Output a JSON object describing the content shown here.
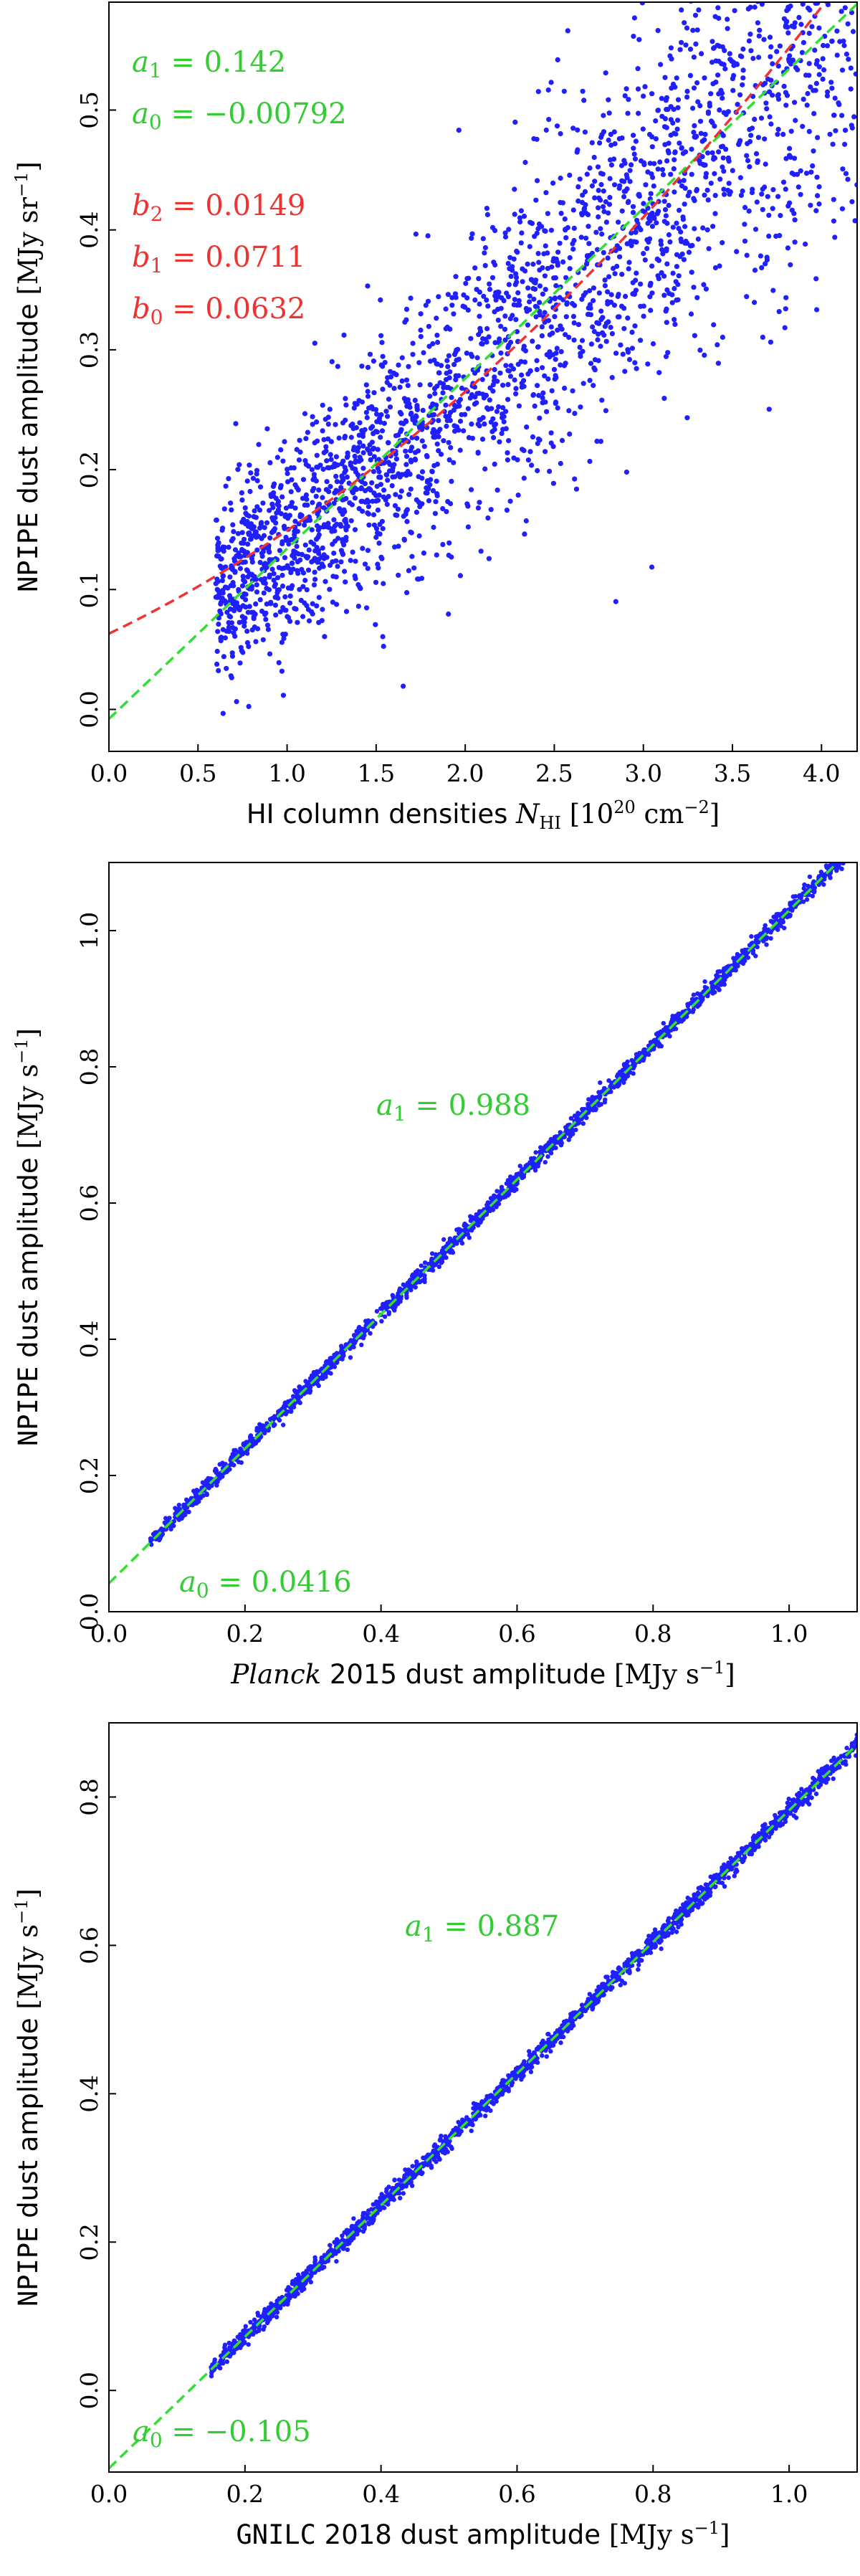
{
  "chart_data": [
    {
      "type": "scatter",
      "title": "",
      "xlabel": {
        "prefix": "HI column densities ",
        "sym": "N",
        "sub": "HI",
        "unit_open": " [10",
        "sup": "20",
        "unit_close": " cm",
        "sup2": "−2",
        "end": "]"
      },
      "ylabel": {
        "mono": "NPIPE",
        "text": " dust amplitude ",
        "unit": "[MJy sr",
        "sup": "−1",
        "end": "]"
      },
      "xlim": [
        0.0,
        4.2
      ],
      "ylim": [
        -0.035,
        0.59
      ],
      "xticks": [
        0.0,
        0.5,
        1.0,
        1.5,
        2.0,
        2.5,
        3.0,
        3.5,
        4.0
      ],
      "yticks": [
        0.0,
        0.1,
        0.2,
        0.3,
        0.4,
        0.5
      ],
      "xtick_labels": [
        "0.0",
        "0.5",
        "1.0",
        "1.5",
        "2.0",
        "2.5",
        "3.0",
        "3.5",
        "4.0"
      ],
      "ytick_labels": [
        "0.0",
        "0.1",
        "0.2",
        "0.3",
        "0.4",
        "0.5"
      ],
      "points_color": "#1f1fff",
      "cloud": {
        "x_min": 0.6,
        "x_max": 4.2,
        "slope": 0.142,
        "intercept": -0.00792,
        "spread": 0.045
      },
      "fits": [
        {
          "kind": "linear",
          "color": "#33dd33",
          "coeffs": [
            -0.00792,
            0.142
          ]
        },
        {
          "kind": "quadratic",
          "color": "#ee3333",
          "coeffs": [
            0.0632,
            0.0711,
            0.0149
          ]
        }
      ],
      "annotations": [
        {
          "sym": "a",
          "sub": "1",
          "value": " = 0.142",
          "color": "#33cc33"
        },
        {
          "sym": "a",
          "sub": "0",
          "value": " = −0.00792",
          "color": "#33cc33"
        },
        {
          "sym": "b",
          "sub": "2",
          "value": " = 0.0149",
          "color": "#ee3333"
        },
        {
          "sym": "b",
          "sub": "1",
          "value": " = 0.0711",
          "color": "#ee3333"
        },
        {
          "sym": "b",
          "sub": "0",
          "value": " = 0.0632",
          "color": "#ee3333"
        }
      ]
    },
    {
      "type": "scatter",
      "title": "",
      "xlabel": {
        "it": "Planck",
        "text": " 2015 dust amplitude ",
        "unit": "[MJy s",
        "sup": "−1",
        "end": "]"
      },
      "ylabel": {
        "mono": "NPIPE",
        "text": " dust amplitude ",
        "unit": "[MJy s",
        "sup": "−1",
        "end": "]"
      },
      "xlim": [
        0.0,
        1.1
      ],
      "ylim": [
        0.0,
        1.1
      ],
      "xticks": [
        0.0,
        0.2,
        0.4,
        0.6,
        0.8,
        1.0
      ],
      "yticks": [
        0.0,
        0.2,
        0.4,
        0.6,
        0.8,
        1.0
      ],
      "xtick_labels": [
        "0.0",
        "0.2",
        "0.4",
        "0.6",
        "0.8",
        "1.0"
      ],
      "ytick_labels": [
        "0.0",
        "0.2",
        "0.4",
        "0.6",
        "0.8",
        "1.0"
      ],
      "points_color": "#1f1fff",
      "cloud": {
        "x_min": 0.06,
        "x_max": 1.1,
        "slope": 0.988,
        "intercept": 0.0416,
        "spread": 0.006
      },
      "fits": [
        {
          "kind": "linear",
          "color": "#33dd33",
          "coeffs": [
            0.0416,
            0.988
          ]
        }
      ],
      "annotations": [
        {
          "sym": "a",
          "sub": "1",
          "value": " = 0.988",
          "color": "#33cc33"
        },
        {
          "sym": "a",
          "sub": "0",
          "value": " = 0.0416",
          "color": "#33cc33"
        }
      ]
    },
    {
      "type": "scatter",
      "title": "",
      "xlabel": {
        "mono": "GNILC",
        "text": " 2018 dust amplitude ",
        "unit": "[MJy s",
        "sup": "−1",
        "end": "]"
      },
      "ylabel": {
        "mono": "NPIPE",
        "text": " dust amplitude ",
        "unit": "[MJy s",
        "sup": "−1",
        "end": "]"
      },
      "xlim": [
        0.0,
        1.1
      ],
      "ylim": [
        -0.11,
        0.9
      ],
      "xticks": [
        0.0,
        0.2,
        0.4,
        0.6,
        0.8,
        1.0
      ],
      "yticks": [
        0.0,
        0.2,
        0.4,
        0.6,
        0.8
      ],
      "xtick_labels": [
        "0.0",
        "0.2",
        "0.4",
        "0.6",
        "0.8",
        "1.0"
      ],
      "ytick_labels": [
        "0.0",
        "0.2",
        "0.4",
        "0.6",
        "0.8"
      ],
      "points_color": "#1f1fff",
      "cloud": {
        "x_min": 0.15,
        "x_max": 1.1,
        "slope": 0.887,
        "intercept": -0.105,
        "spread": 0.006
      },
      "fits": [
        {
          "kind": "linear",
          "color": "#33dd33",
          "coeffs": [
            -0.105,
            0.887
          ]
        }
      ],
      "annotations": [
        {
          "sym": "a",
          "sub": "1",
          "value": " = 0.887",
          "color": "#33cc33"
        },
        {
          "sym": "a",
          "sub": "0",
          "value": " = −0.105",
          "color": "#33cc33"
        }
      ]
    }
  ]
}
